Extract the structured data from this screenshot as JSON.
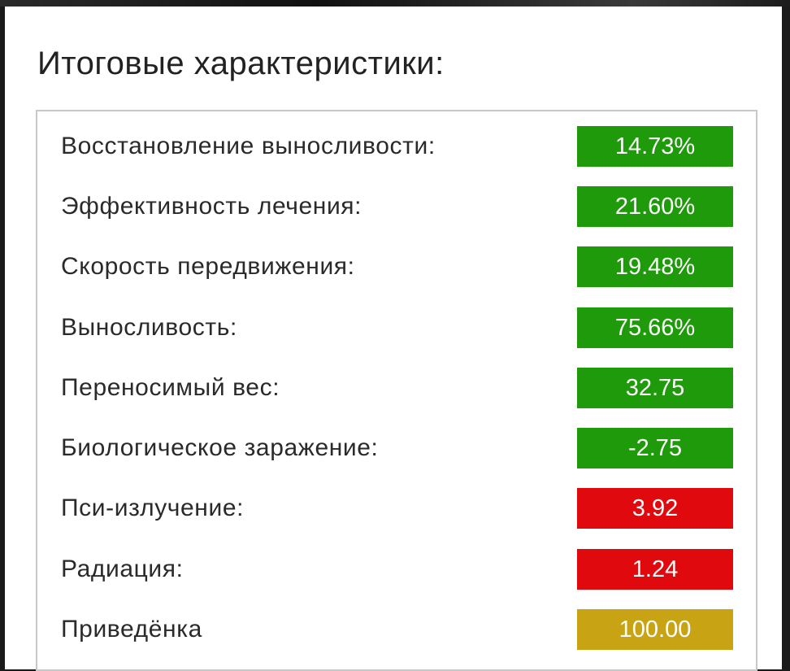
{
  "title": "Итоговые характеристики:",
  "colors": {
    "good": "#1f9a0b",
    "bad": "#e0090d",
    "neutral": "#c8a415"
  },
  "stats": [
    {
      "label": "Восстановление выносливости:",
      "value": "14.73%",
      "status": "good"
    },
    {
      "label": "Эффективность лечения:",
      "value": "21.60%",
      "status": "good"
    },
    {
      "label": "Скорость передвижения:",
      "value": "19.48%",
      "status": "good"
    },
    {
      "label": "Выносливость:",
      "value": "75.66%",
      "status": "good"
    },
    {
      "label": "Переносимый вес:",
      "value": "32.75",
      "status": "good"
    },
    {
      "label": "Биологическое заражение:",
      "value": "-2.75",
      "status": "good"
    },
    {
      "label": "Пси-излучение:",
      "value": "3.92",
      "status": "bad"
    },
    {
      "label": "Радиация:",
      "value": "1.24",
      "status": "bad"
    },
    {
      "label": "Приведёнка",
      "value": "100.00",
      "status": "neutral"
    }
  ]
}
